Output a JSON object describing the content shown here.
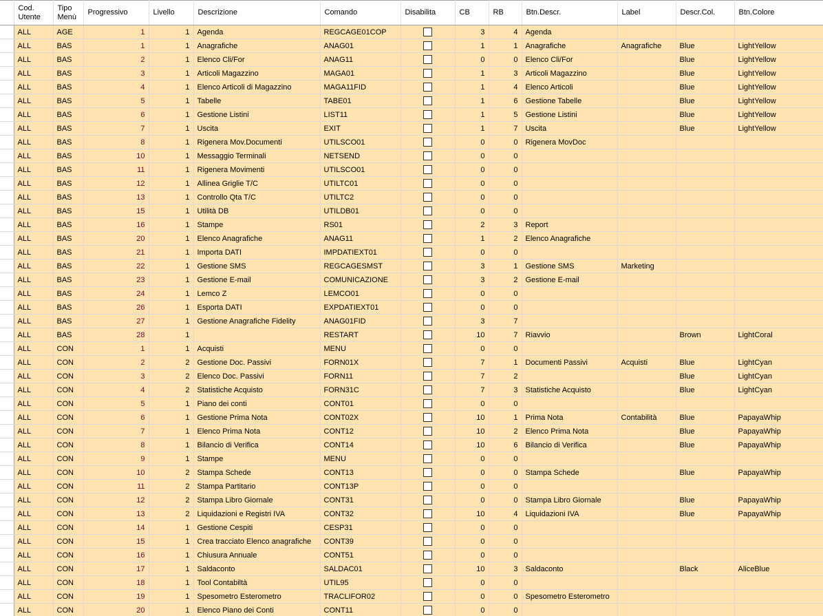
{
  "columns": [
    "",
    "Cod.\nUtente",
    "Tipo\nMenù",
    "Progressivo",
    "Livello",
    "Descrizione",
    "Comando",
    "Disabilita",
    "CB",
    "RB",
    "Btn.Descr.",
    "Label",
    "Descr.Col.",
    "Btn.Colore"
  ],
  "rows": [
    [
      "ALL",
      "AGE",
      "1",
      "1",
      "Agenda",
      "REGCAGE01COP",
      false,
      "3",
      "4",
      "Agenda",
      "",
      "",
      ""
    ],
    [
      "ALL",
      "BAS",
      "1",
      "1",
      "Anagrafiche",
      "ANAG01",
      false,
      "1",
      "1",
      "Anagrafiche",
      "Anagrafiche",
      "Blue",
      "LightYellow"
    ],
    [
      "ALL",
      "BAS",
      "2",
      "1",
      "Elenco Cli/For",
      "ANAG11",
      false,
      "0",
      "0",
      "Elenco Cli/For",
      "",
      "Blue",
      "LightYellow"
    ],
    [
      "ALL",
      "BAS",
      "3",
      "1",
      "Articoli Magazzino",
      "MAGA01",
      false,
      "1",
      "3",
      "Articoli Magazzino",
      "",
      "Blue",
      "LightYellow"
    ],
    [
      "ALL",
      "BAS",
      "4",
      "1",
      "Elenco Articoli di Magazzino",
      "MAGA11FID",
      false,
      "1",
      "4",
      "Elenco Articoli",
      "",
      "Blue",
      "LightYellow"
    ],
    [
      "ALL",
      "BAS",
      "5",
      "1",
      "Tabelle",
      "TABE01",
      false,
      "1",
      "6",
      "Gestione Tabelle",
      "",
      "Blue",
      "LightYellow"
    ],
    [
      "ALL",
      "BAS",
      "6",
      "1",
      "Gestione Listini",
      "LIST11",
      false,
      "1",
      "5",
      "Gestione Listini",
      "",
      "Blue",
      "LightYellow"
    ],
    [
      "ALL",
      "BAS",
      "7",
      "1",
      "Uscita",
      "EXIT",
      false,
      "1",
      "7",
      "Uscita",
      "",
      "Blue",
      "LightYellow"
    ],
    [
      "ALL",
      "BAS",
      "8",
      "1",
      "Rigenera Mov.Documenti",
      "UTILSCO01",
      false,
      "0",
      "0",
      "Rigenera MovDoc",
      "",
      "",
      ""
    ],
    [
      "ALL",
      "BAS",
      "10",
      "1",
      "Messaggio Terminali",
      "NETSEND",
      false,
      "0",
      "0",
      "",
      "",
      "",
      ""
    ],
    [
      "ALL",
      "BAS",
      "11",
      "1",
      "Rigenera Movimenti",
      "UTILSCO01",
      false,
      "0",
      "0",
      "",
      "",
      "",
      ""
    ],
    [
      "ALL",
      "BAS",
      "12",
      "1",
      "Allinea Griglie T/C",
      "UTILTC01",
      false,
      "0",
      "0",
      "",
      "",
      "",
      ""
    ],
    [
      "ALL",
      "BAS",
      "13",
      "1",
      "Controllo Qta T/C",
      "UTILTC2",
      false,
      "0",
      "0",
      "",
      "",
      "",
      ""
    ],
    [
      "ALL",
      "BAS",
      "15",
      "1",
      "Utilità DB",
      "UTILDB01",
      false,
      "0",
      "0",
      "",
      "",
      "",
      ""
    ],
    [
      "ALL",
      "BAS",
      "16",
      "1",
      "Stampe",
      "RS01",
      false,
      "2",
      "3",
      "Report",
      "",
      "",
      ""
    ],
    [
      "ALL",
      "BAS",
      "20",
      "1",
      "Elenco Anagrafiche",
      "ANAG11",
      false,
      "1",
      "2",
      "Elenco Anagrafiche",
      "",
      "",
      ""
    ],
    [
      "ALL",
      "BAS",
      "21",
      "1",
      "Importa DATI",
      "IMPDATIEXT01",
      false,
      "0",
      "0",
      "",
      "",
      "",
      ""
    ],
    [
      "ALL",
      "BAS",
      "22",
      "1",
      "Gestione SMS",
      "REGCAGESMST",
      false,
      "3",
      "1",
      "Gestione SMS",
      "Marketing",
      "",
      ""
    ],
    [
      "ALL",
      "BAS",
      "23",
      "1",
      "Gestione E-mail",
      "COMUNICAZIONE",
      false,
      "3",
      "2",
      "Gestione E-mail",
      "",
      "",
      ""
    ],
    [
      "ALL",
      "BAS",
      "24",
      "1",
      "Lemco Z",
      "LEMCO01",
      false,
      "0",
      "0",
      "",
      "",
      "",
      ""
    ],
    [
      "ALL",
      "BAS",
      "26",
      "1",
      "Esporta DATI",
      "EXPDATIEXT01",
      false,
      "0",
      "0",
      "",
      "",
      "",
      ""
    ],
    [
      "ALL",
      "BAS",
      "27",
      "1",
      "Gestione Anagrafiche Fidelity",
      "ANAG01FID",
      false,
      "3",
      "7",
      "",
      "",
      "",
      ""
    ],
    [
      "ALL",
      "BAS",
      "28",
      "1",
      "",
      "RESTART",
      false,
      "10",
      "7",
      "Riavvio",
      "",
      "Brown",
      "LightCoral"
    ],
    [
      "ALL",
      "CON",
      "1",
      "1",
      "Acquisti",
      "MENU",
      false,
      "0",
      "0",
      "",
      "",
      "",
      ""
    ],
    [
      "ALL",
      "CON",
      "2",
      "2",
      "Gestione Doc. Passivi",
      "FORN01X",
      false,
      "7",
      "1",
      "Documenti Passivi",
      "Acquisti",
      "Blue",
      "LightCyan"
    ],
    [
      "ALL",
      "CON",
      "3",
      "2",
      "Elenco Doc. Passivi",
      "FORN11",
      false,
      "7",
      "2",
      "",
      "",
      "Blue",
      "LightCyan"
    ],
    [
      "ALL",
      "CON",
      "4",
      "2",
      "Statistiche Acquisto",
      "FORN31C",
      false,
      "7",
      "3",
      "Statistiche Acquisto",
      "",
      "Blue",
      "LightCyan"
    ],
    [
      "ALL",
      "CON",
      "5",
      "1",
      "Piano dei conti",
      "CONT01",
      false,
      "0",
      "0",
      "",
      "",
      "",
      ""
    ],
    [
      "ALL",
      "CON",
      "6",
      "1",
      "Gestione Prima Nota",
      "CONT02X",
      false,
      "10",
      "1",
      "Prima Nota",
      "Contabilità",
      "Blue",
      "PapayaWhip"
    ],
    [
      "ALL",
      "CON",
      "7",
      "1",
      "Elenco Prima Nota",
      "CONT12",
      false,
      "10",
      "2",
      "Elenco Prima Nota",
      "",
      "Blue",
      "PapayaWhip"
    ],
    [
      "ALL",
      "CON",
      "8",
      "1",
      "Bilancio di Verifica",
      "CONT14",
      false,
      "10",
      "6",
      "Bilancio di Verifica",
      "",
      "Blue",
      "PapayaWhip"
    ],
    [
      "ALL",
      "CON",
      "9",
      "1",
      "Stampe",
      "MENU",
      false,
      "0",
      "0",
      "",
      "",
      "",
      ""
    ],
    [
      "ALL",
      "CON",
      "10",
      "2",
      "Stampa Schede",
      "CONT13",
      false,
      "0",
      "0",
      "Stampa Schede",
      "",
      "Blue",
      "PapayaWhip"
    ],
    [
      "ALL",
      "CON",
      "11",
      "2",
      "Stampa Partitario",
      "CONT13P",
      false,
      "0",
      "0",
      "",
      "",
      "",
      ""
    ],
    [
      "ALL",
      "CON",
      "12",
      "2",
      "Stampa Libro Giornale",
      "CONT31",
      false,
      "0",
      "0",
      "Stampa Libro Giornale",
      "",
      "Blue",
      "PapayaWhip"
    ],
    [
      "ALL",
      "CON",
      "13",
      "2",
      "Liquidazioni e Registri IVA",
      "CONT32",
      false,
      "10",
      "4",
      "Liquidazioni IVA",
      "",
      "Blue",
      "PapayaWhip"
    ],
    [
      "ALL",
      "CON",
      "14",
      "1",
      "Gestione Cespiti",
      "CESP31",
      false,
      "0",
      "0",
      "",
      "",
      "",
      ""
    ],
    [
      "ALL",
      "CON",
      "15",
      "1",
      "Crea tracciato Elenco anagrafiche",
      "CONT39",
      false,
      "0",
      "0",
      "",
      "",
      "",
      ""
    ],
    [
      "ALL",
      "CON",
      "16",
      "1",
      "Chiusura Annuale",
      "CONT51",
      false,
      "0",
      "0",
      "",
      "",
      "",
      ""
    ],
    [
      "ALL",
      "CON",
      "17",
      "1",
      "Saldaconto",
      "SALDAC01",
      false,
      "10",
      "3",
      "Saldaconto",
      "",
      "Black",
      "AliceBlue"
    ],
    [
      "ALL",
      "CON",
      "18",
      "1",
      "Tool Contabiltà",
      "UTIL95",
      false,
      "0",
      "0",
      "",
      "",
      "",
      ""
    ],
    [
      "ALL",
      "CON",
      "19",
      "1",
      "Spesometro Esterometro",
      "TRACLIFOR02",
      false,
      "0",
      "0",
      "Spesometro Esterometro",
      "",
      "",
      ""
    ],
    [
      "ALL",
      "CON",
      "20",
      "1",
      "Elenco Piano dei Conti",
      "CONT11",
      false,
      "0",
      "0",
      "",
      "",
      "",
      ""
    ]
  ]
}
